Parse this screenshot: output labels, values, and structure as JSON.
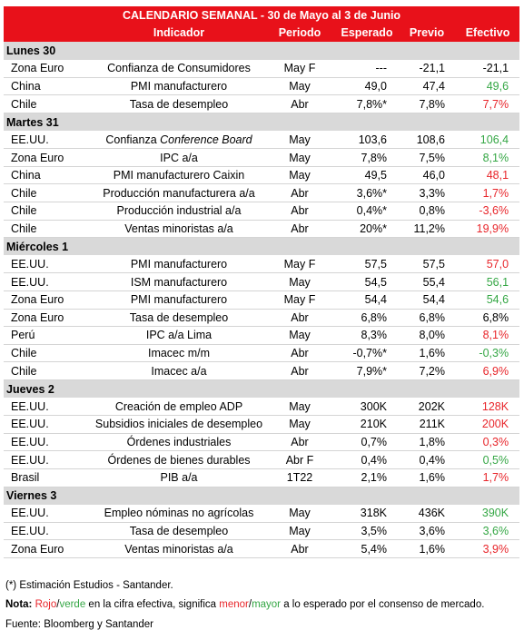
{
  "header": {
    "title": "CALENDARIO SEMANAL - 30 de Mayo al 3 de Junio"
  },
  "table": {
    "columns": [
      "Indicador",
      "Periodo",
      "Esperado",
      "Previo",
      "Efectivo"
    ],
    "colors": {
      "red": "#e8262b",
      "green": "#35a745",
      "black": "#000000"
    },
    "days": [
      {
        "label": "Lunes 30",
        "rows": [
          {
            "cells": [
              "Zona Euro",
              "Confianza de Consumidores",
              "May F",
              "---",
              "-21,1",
              "-21,1"
            ],
            "actual_color": "black"
          },
          {
            "cells": [
              "China",
              "PMI manufacturero",
              "May",
              "49,0",
              "47,4",
              "49,6"
            ],
            "actual_color": "green"
          },
          {
            "cells": [
              "Chile",
              "Tasa de desempleo",
              "Abr",
              "7,8%*",
              "7,8%",
              "7,7%"
            ],
            "actual_color": "red"
          }
        ]
      },
      {
        "label": "Martes 31",
        "rows": [
          {
            "cells": [
              "EE.UU.",
              "Confianza",
              "May",
              "103,6",
              "108,6",
              "106,4"
            ],
            "indicator_italic": "Conference Board",
            "actual_color": "green"
          },
          {
            "cells": [
              "Zona Euro",
              "IPC a/a",
              "May",
              "7,8%",
              "7,5%",
              "8,1%"
            ],
            "actual_color": "green"
          },
          {
            "cells": [
              "China",
              "PMI manufacturero Caixin",
              "May",
              "49,5",
              "46,0",
              "48,1"
            ],
            "actual_color": "red"
          },
          {
            "cells": [
              "Chile",
              "Producción manufacturera a/a",
              "Abr",
              "3,6%*",
              "3,3%",
              "1,7%"
            ],
            "actual_color": "red"
          },
          {
            "cells": [
              "Chile",
              "Producción industrial a/a",
              "Abr",
              "0,4%*",
              "0,8%",
              "-3,6%"
            ],
            "actual_color": "red"
          },
          {
            "cells": [
              "Chile",
              "Ventas minoristas a/a",
              "Abr",
              "20%*",
              "11,2%",
              "19,9%"
            ],
            "actual_color": "red"
          }
        ]
      },
      {
        "label": "Miércoles 1",
        "rows": [
          {
            "cells": [
              "EE.UU.",
              "PMI manufacturero",
              "May F",
              "57,5",
              "57,5",
              "57,0"
            ],
            "actual_color": "red"
          },
          {
            "cells": [
              "EE.UU.",
              "ISM manufacturero",
              "May",
              "54,5",
              "55,4",
              "56,1"
            ],
            "actual_color": "green"
          },
          {
            "cells": [
              "Zona Euro",
              "PMI manufacturero",
              "May F",
              "54,4",
              "54,4",
              "54,6"
            ],
            "actual_color": "green"
          },
          {
            "cells": [
              "Zona Euro",
              "Tasa de desempleo",
              "Abr",
              "6,8%",
              "6,8%",
              "6,8%"
            ],
            "actual_color": "black"
          },
          {
            "cells": [
              "Perú",
              "IPC a/a Lima",
              "May",
              "8,3%",
              "8,0%",
              "8,1%"
            ],
            "actual_color": "red"
          },
          {
            "cells": [
              "Chile",
              "Imacec m/m",
              "Abr",
              "-0,7%*",
              "1,6%",
              "-0,3%"
            ],
            "actual_color": "green"
          },
          {
            "cells": [
              "Chile",
              "Imacec a/a",
              "Abr",
              "7,9%*",
              "7,2%",
              "6,9%"
            ],
            "actual_color": "red"
          }
        ]
      },
      {
        "label": "Jueves 2",
        "rows": [
          {
            "cells": [
              "EE.UU.",
              "Creación de empleo ADP",
              "May",
              "300K",
              "202K",
              "128K"
            ],
            "actual_color": "red"
          },
          {
            "cells": [
              "EE.UU.",
              "Subsidios iniciales de desempleo",
              "May",
              "210K",
              "211K",
              "200K"
            ],
            "actual_color": "red"
          },
          {
            "cells": [
              "EE.UU.",
              "Órdenes industriales",
              "Abr",
              "0,7%",
              "1,8%",
              "0,3%"
            ],
            "actual_color": "red"
          },
          {
            "cells": [
              "EE.UU.",
              "Órdenes de bienes durables",
              "Abr F",
              "0,4%",
              "0,4%",
              "0,5%"
            ],
            "actual_color": "green"
          },
          {
            "cells": [
              "Brasil",
              "PIB a/a",
              "1T22",
              "2,1%",
              "1,6%",
              "1,7%"
            ],
            "actual_color": "red"
          }
        ]
      },
      {
        "label": "Viernes 3",
        "rows": [
          {
            "cells": [
              "EE.UU.",
              "Empleo nóminas no agrícolas",
              "May",
              "318K",
              "436K",
              "390K"
            ],
            "actual_color": "green"
          },
          {
            "cells": [
              "EE.UU.",
              "Tasa de desempleo",
              "May",
              "3,5%",
              "3,6%",
              "3,6%"
            ],
            "actual_color": "green"
          },
          {
            "cells": [
              "Zona Euro",
              "Ventas minoristas a/a",
              "Abr",
              "5,4%",
              "1,6%",
              "3,9%"
            ],
            "actual_color": "red"
          }
        ]
      }
    ]
  },
  "footer": {
    "estimate_note": "(*) Estimación Estudios - Santander.",
    "note": [
      {
        "text": "Nota:",
        "bold": true,
        "color": "black"
      },
      {
        "text": " Rojo",
        "color": "red"
      },
      {
        "text": "/",
        "color": "black"
      },
      {
        "text": "verde",
        "color": "green"
      },
      {
        "text": " en la cifra efectiva, significa ",
        "color": "black"
      },
      {
        "text": "menor",
        "color": "red"
      },
      {
        "text": "/",
        "color": "black"
      },
      {
        "text": "mayor",
        "color": "green"
      },
      {
        "text": " a lo esperado por el consenso de mercado.",
        "color": "black"
      }
    ],
    "source": "Fuente: Bloomberg y Santander"
  }
}
